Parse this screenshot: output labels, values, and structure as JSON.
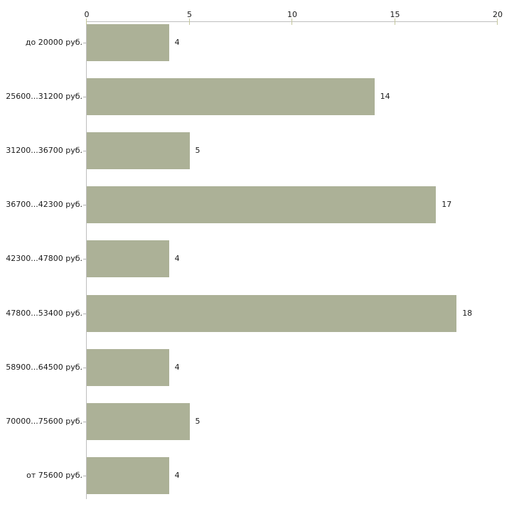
{
  "chart_data": {
    "type": "bar",
    "orientation": "horizontal",
    "title": "",
    "xlabel": "",
    "ylabel": "",
    "categories": [
      "до 20000 руб.",
      "25600...31200 руб.",
      "31200...36700 руб.",
      "36700...42300 руб.",
      "42300...47800 руб.",
      "47800...53400 руб.",
      "58900...64500 руб.",
      "70000...75600 руб.",
      "от 75600 руб."
    ],
    "values": [
      4,
      14,
      5,
      17,
      4,
      18,
      4,
      5,
      4
    ],
    "xlim": [
      0,
      20
    ],
    "x_ticks": [
      "0",
      "5",
      "10",
      "15",
      "20"
    ],
    "axis_position": "top",
    "grid": false,
    "legend": false,
    "value_labels_shown": true,
    "colors": {
      "bar": "#acb197",
      "axis_line": "#bfbfbf",
      "axis_tick": "#c5c79c",
      "category_tick": "#b3b3b3",
      "text": "#1a1a1a",
      "background": "#ffffff"
    }
  }
}
